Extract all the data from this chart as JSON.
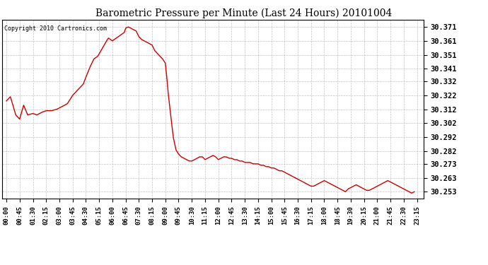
{
  "title": "Barometric Pressure per Minute (Last 24 Hours) 20101004",
  "copyright": "Copyright 2010 Cartronics.com",
  "line_color": "#cc0000",
  "bg_color": "#ffffff",
  "plot_bg_color": "#ffffff",
  "grid_color": "#aaaaaa",
  "yticks": [
    30.253,
    30.263,
    30.273,
    30.282,
    30.292,
    30.302,
    30.312,
    30.322,
    30.332,
    30.341,
    30.351,
    30.361,
    30.371
  ],
  "ylim": [
    30.248,
    30.376
  ],
  "xtick_labels": [
    "00:00",
    "00:45",
    "01:30",
    "02:15",
    "03:00",
    "03:45",
    "04:30",
    "05:15",
    "06:00",
    "06:45",
    "07:30",
    "08:15",
    "09:00",
    "09:45",
    "10:30",
    "11:15",
    "12:00",
    "12:45",
    "13:30",
    "14:15",
    "15:00",
    "15:45",
    "16:30",
    "17:15",
    "18:00",
    "18:45",
    "19:30",
    "20:15",
    "21:00",
    "21:45",
    "22:30",
    "23:15"
  ]
}
